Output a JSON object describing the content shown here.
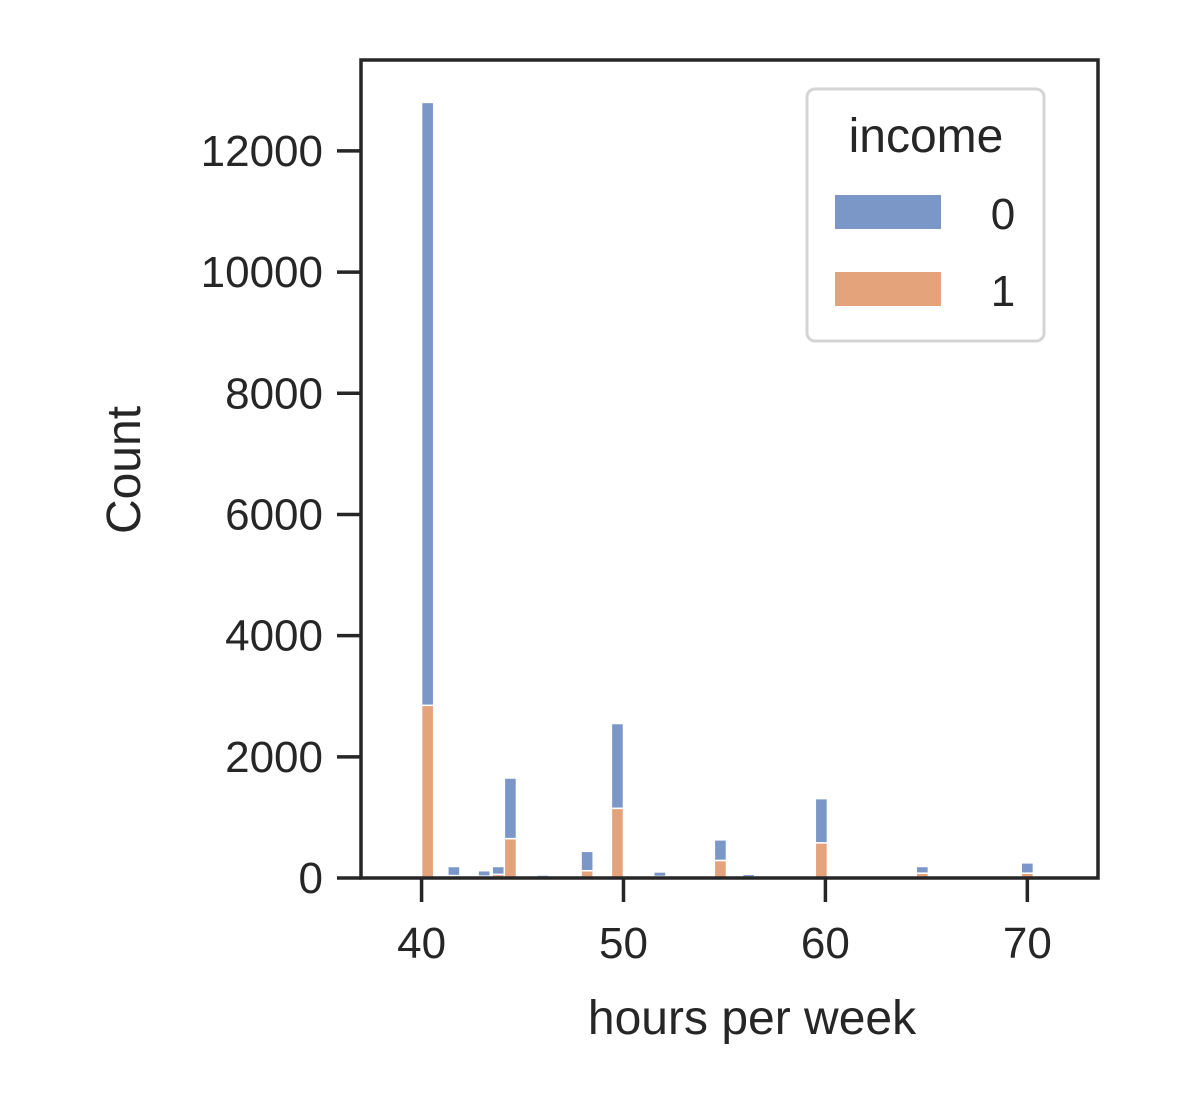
{
  "chart_data": {
    "type": "bar",
    "subtype": "stacked-histogram",
    "xlabel": "hours per week",
    "ylabel": "Count",
    "xlim": [
      37,
      73.5
    ],
    "ylim": [
      0,
      13500
    ],
    "xticks": [
      40,
      50,
      60,
      70
    ],
    "yticks": [
      0,
      2000,
      4000,
      6000,
      8000,
      10000,
      12000
    ],
    "grid": false,
    "legend": {
      "title": "income",
      "placement": "top-right"
    },
    "colors": {
      "0": "#7b97c7",
      "1": "#e5a37c"
    },
    "bins": [
      {
        "x0": 40.0,
        "x1": 40.6,
        "income_1": 2850,
        "income_0": 9950
      },
      {
        "x0": 41.3,
        "x1": 41.9,
        "income_1": 40,
        "income_0": 150
      },
      {
        "x0": 42.8,
        "x1": 43.4,
        "income_1": 30,
        "income_0": 90
      },
      {
        "x0": 43.5,
        "x1": 44.1,
        "income_1": 60,
        "income_0": 130
      },
      {
        "x0": 44.1,
        "x1": 44.7,
        "income_1": 650,
        "income_0": 1000
      },
      {
        "x0": 45.7,
        "x1": 46.3,
        "income_1": 15,
        "income_0": 35
      },
      {
        "x0": 47.9,
        "x1": 48.5,
        "income_1": 120,
        "income_0": 320
      },
      {
        "x0": 49.4,
        "x1": 50.0,
        "income_1": 1150,
        "income_0": 1400
      },
      {
        "x0": 51.5,
        "x1": 52.1,
        "income_1": 25,
        "income_0": 75
      },
      {
        "x0": 54.5,
        "x1": 55.1,
        "income_1": 290,
        "income_0": 340
      },
      {
        "x0": 55.9,
        "x1": 56.5,
        "income_1": 15,
        "income_0": 45
      },
      {
        "x0": 59.5,
        "x1": 60.1,
        "income_1": 580,
        "income_0": 730
      },
      {
        "x0": 64.5,
        "x1": 65.1,
        "income_1": 80,
        "income_0": 110
      },
      {
        "x0": 69.7,
        "x1": 70.3,
        "income_1": 80,
        "income_0": 170
      }
    ]
  }
}
